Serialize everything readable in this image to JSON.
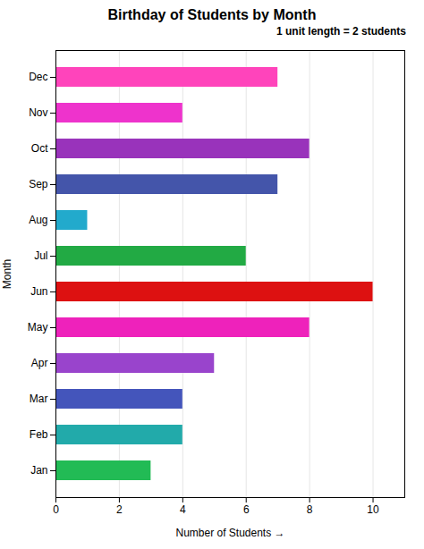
{
  "chart_data": {
    "type": "bar",
    "orientation": "horizontal",
    "title": "Birthday of Students by Month",
    "xlabel": "Number of Students",
    "ylabel": "Month",
    "annotation": "1 unit length = 2 students",
    "categories": [
      "Jan",
      "Feb",
      "Mar",
      "Apr",
      "May",
      "Jun",
      "Jul",
      "Aug",
      "Sep",
      "Oct",
      "Nov",
      "Dec"
    ],
    "values": [
      3,
      4,
      4,
      5,
      8,
      10,
      6,
      1,
      7,
      8,
      4,
      7
    ],
    "colors": [
      "#22bb55",
      "#22aaaa",
      "#4455bb",
      "#9944cc",
      "#ee22bb",
      "#dd1111",
      "#22aa44",
      "#22aacc",
      "#4455aa",
      "#9933bb",
      "#ee33cc",
      "#ff44bb"
    ],
    "xlim": [
      0,
      11.0
    ],
    "xticks": [
      0,
      2,
      4,
      6,
      8,
      10
    ],
    "grid": true
  }
}
